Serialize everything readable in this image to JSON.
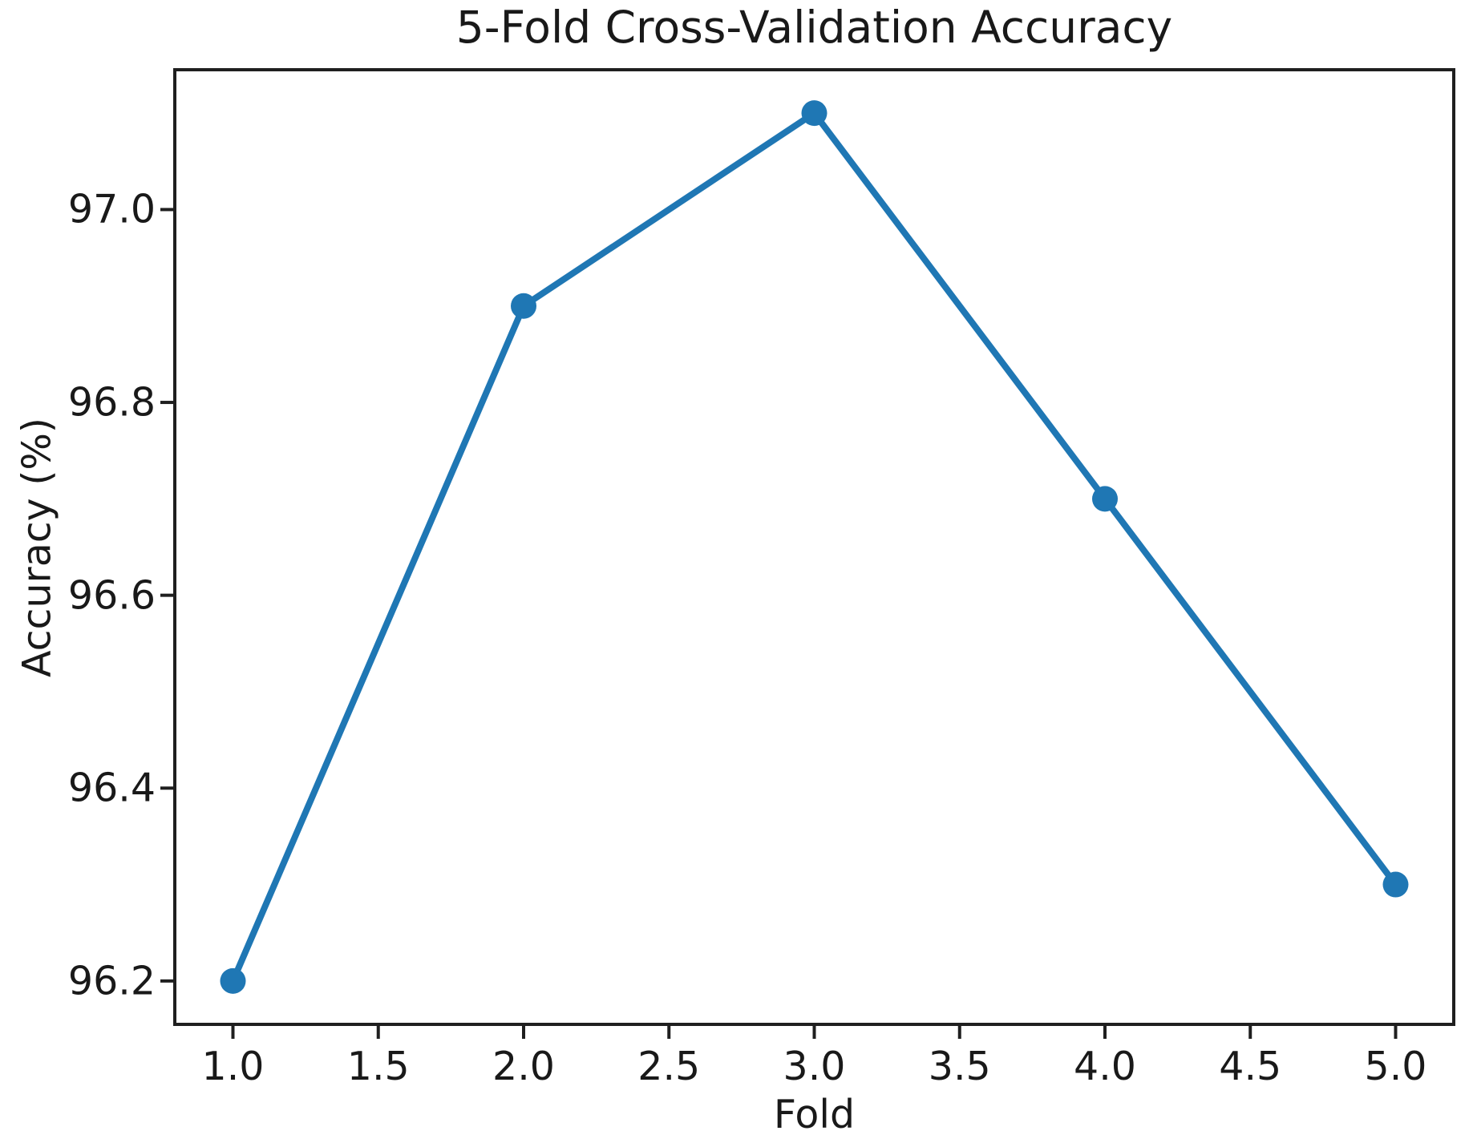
{
  "chart_data": {
    "type": "line",
    "title": "5-Fold Cross-Validation Accuracy",
    "xlabel": "Fold",
    "ylabel": "Accuracy (%)",
    "series": [
      {
        "name": "Accuracy",
        "x": [
          1,
          2,
          3,
          4,
          5
        ],
        "values": [
          96.2,
          96.9,
          97.1,
          96.7,
          96.3
        ]
      }
    ],
    "xlim": [
      0.8,
      5.2
    ],
    "ylim": [
      96.155,
      97.145
    ],
    "xtick_values": [
      1.0,
      1.5,
      2.0,
      2.5,
      3.0,
      3.5,
      4.0,
      4.5,
      5.0
    ],
    "xtick_labels": [
      "1.0",
      "1.5",
      "2.0",
      "2.5",
      "3.0",
      "3.5",
      "4.0",
      "4.5",
      "5.0"
    ],
    "ytick_values": [
      96.2,
      96.4,
      96.6,
      96.8,
      97.0
    ],
    "ytick_labels": [
      "96.2",
      "96.4",
      "96.6",
      "96.8",
      "97.0"
    ],
    "grid": false,
    "legend": false,
    "colors": {
      "line": "#1f77b4",
      "marker": "#1f77b4",
      "axis": "#1f1f1f",
      "text": "#191919",
      "background": "#ffffff"
    },
    "marker": "circle"
  }
}
